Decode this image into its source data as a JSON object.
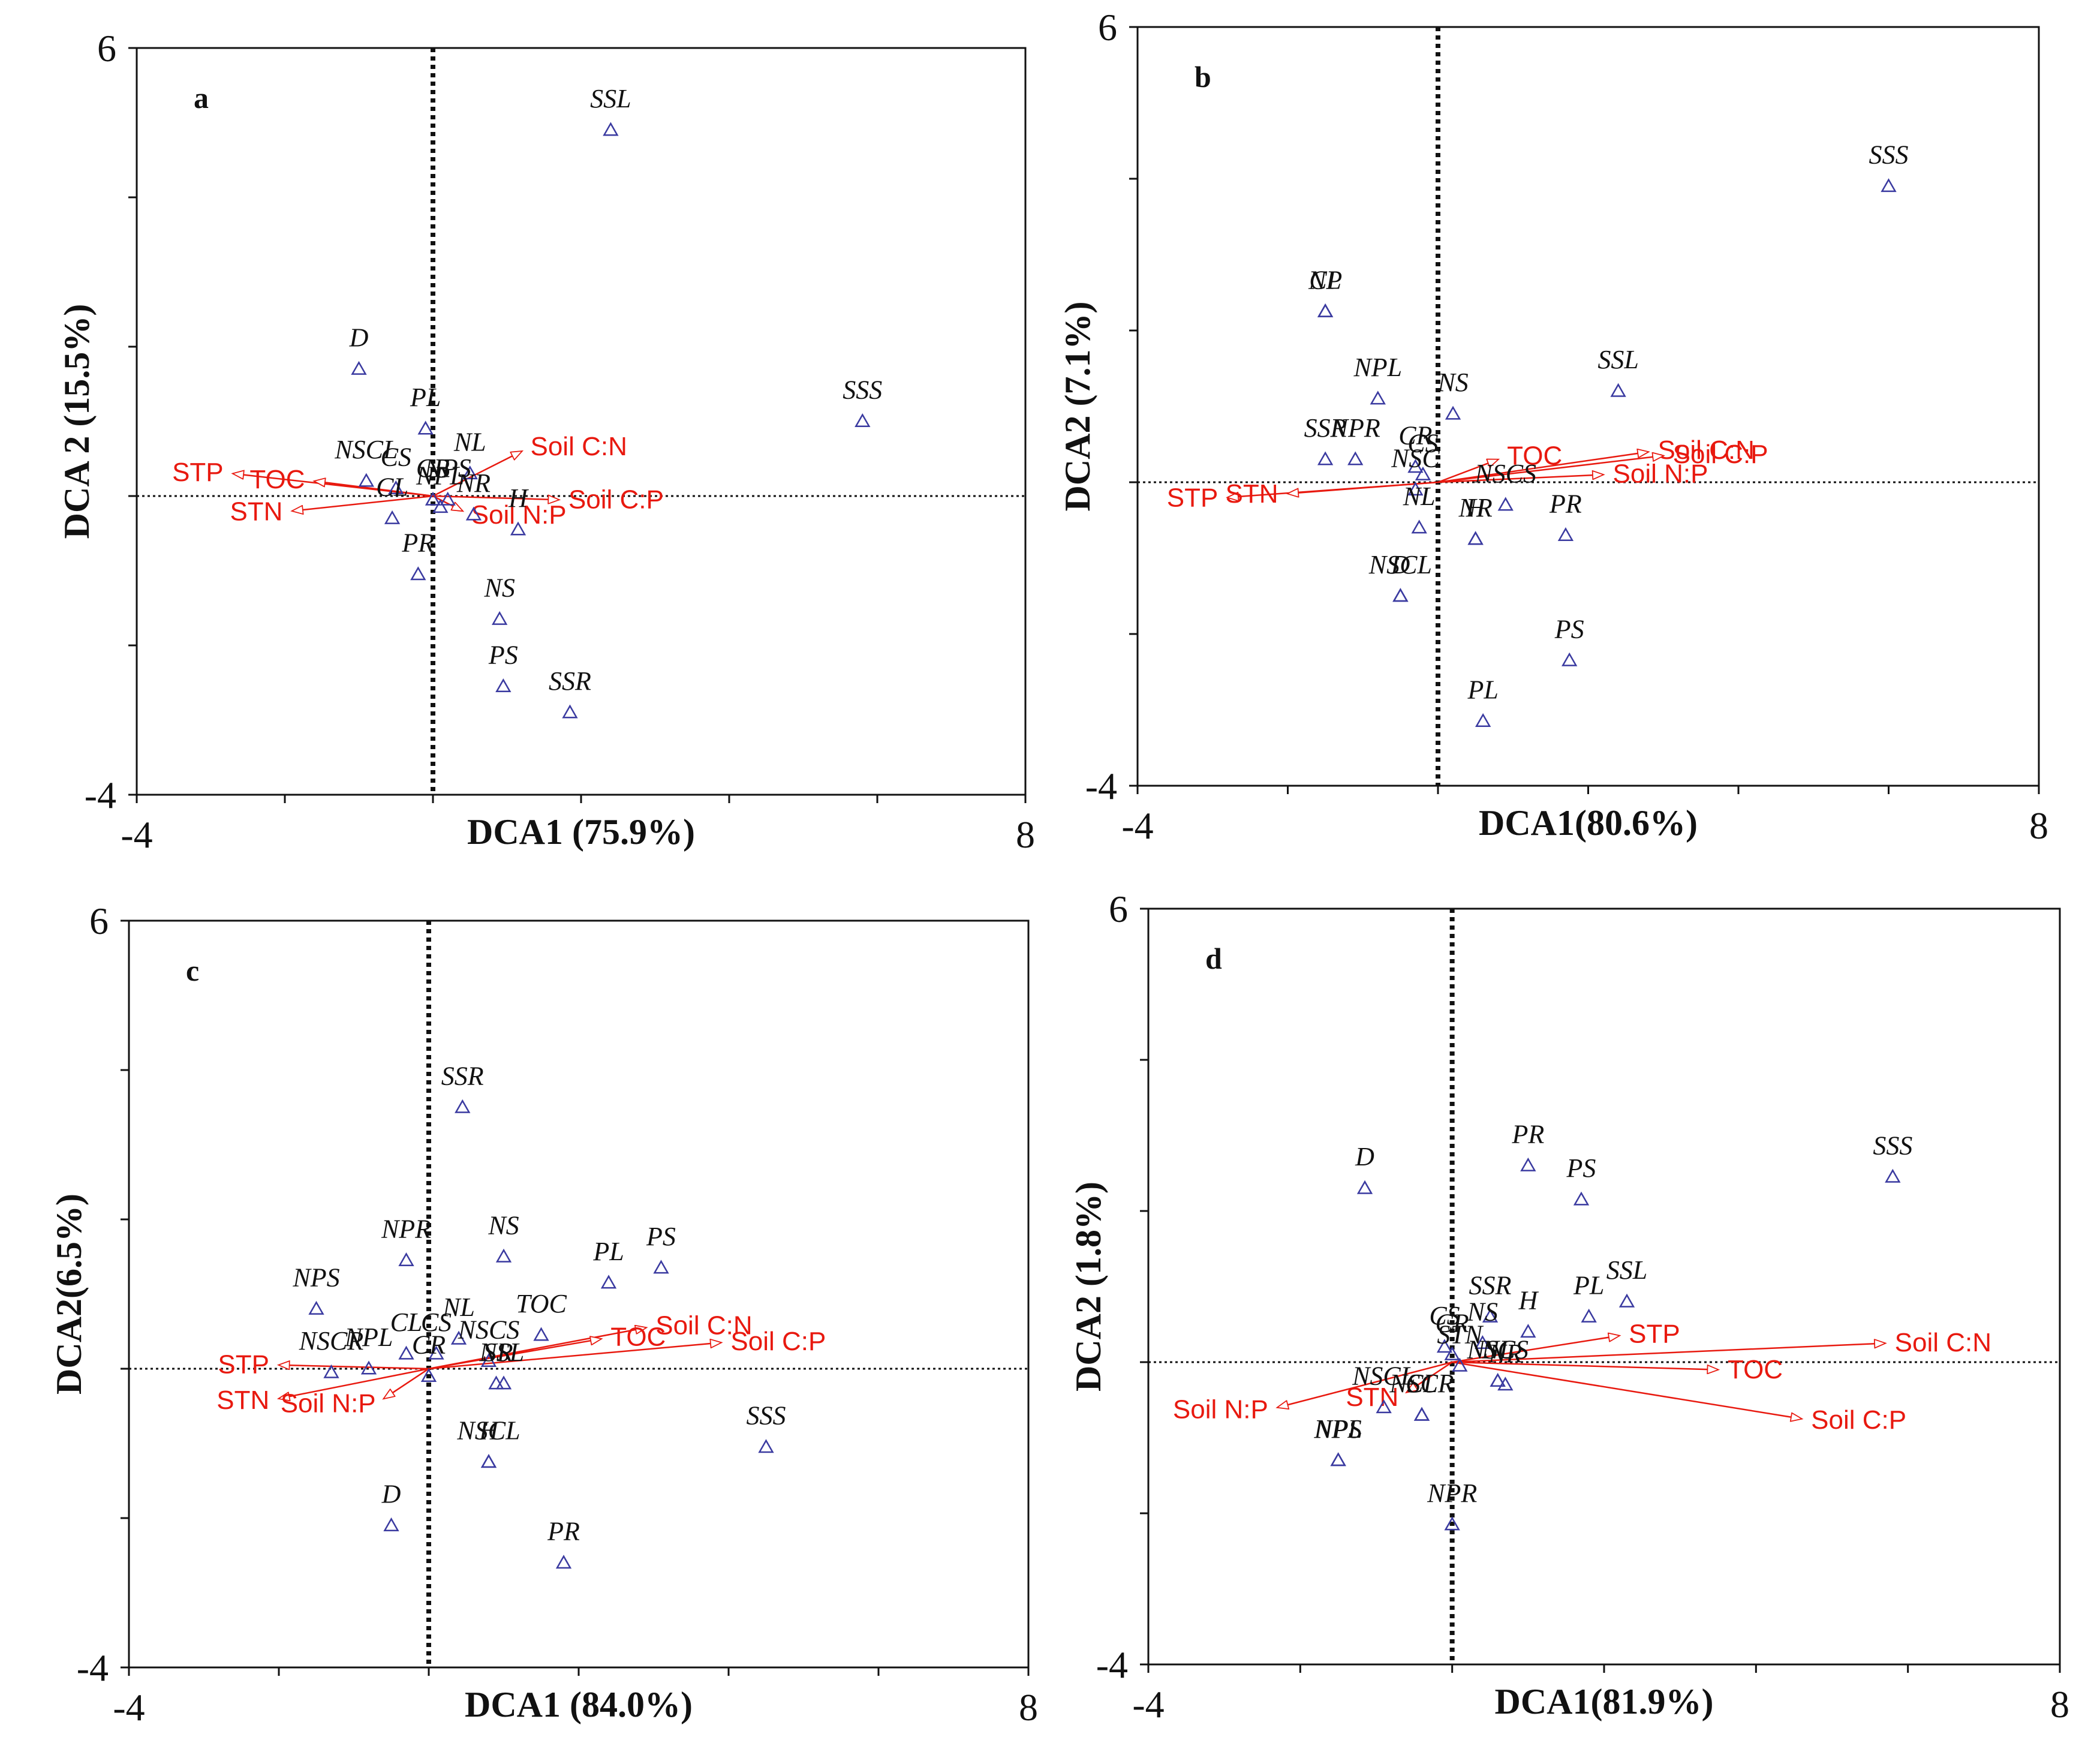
{
  "colors": {
    "arrow": "#e8190f",
    "point": "#3a3aa0",
    "axis": "#111111"
  },
  "chart_data": [
    {
      "type": "scatter",
      "panel_label": "a",
      "xlabel": "DCA1 (75.9%)",
      "ylabel": "DCA 2 (15.5%)",
      "xlim": [
        -4,
        8
      ],
      "ylim": [
        -4,
        6
      ],
      "x_tick_labels": [
        "-4",
        "8"
      ],
      "y_tick_labels": [
        "6",
        "-4"
      ],
      "zero_lines": {
        "x": 0,
        "y": 0
      },
      "sites": [
        {
          "label": "SSL",
          "x": 2.4,
          "y": 4.9
        },
        {
          "label": "SSS",
          "x": 5.8,
          "y": 1.0
        },
        {
          "label": "D",
          "x": -1.0,
          "y": 1.7
        },
        {
          "label": "PL",
          "x": -0.1,
          "y": 0.9
        },
        {
          "label": "NSCL",
          "x": -0.9,
          "y": 0.2
        },
        {
          "label": "CS",
          "x": -0.5,
          "y": 0.1
        },
        {
          "label": "NL",
          "x": 0.5,
          "y": 0.3
        },
        {
          "label": "CL",
          "x": -0.55,
          "y": -0.3
        },
        {
          "label": "NPL",
          "x": 0.1,
          "y": -0.15
        },
        {
          "label": "NR",
          "x": 0.55,
          "y": -0.25
        },
        {
          "label": "CR",
          "x": 0.0,
          "y": -0.05
        },
        {
          "label": "NPS",
          "x": 0.2,
          "y": -0.05
        },
        {
          "label": "H",
          "x": 1.15,
          "y": -0.45
        },
        {
          "label": "PR",
          "x": -0.2,
          "y": -1.05
        },
        {
          "label": "NS",
          "x": 0.9,
          "y": -1.65
        },
        {
          "label": "PS",
          "x": 0.95,
          "y": -2.55
        },
        {
          "label": "SSR",
          "x": 1.85,
          "y": -2.9
        }
      ],
      "vectors": [
        {
          "label": "STP",
          "x": -2.7,
          "y": 0.3
        },
        {
          "label": "STN",
          "x": -1.9,
          "y": -0.2
        },
        {
          "label": "TOC",
          "x": -1.6,
          "y": 0.2
        },
        {
          "label": "Soil C:N",
          "x": 1.2,
          "y": 0.6
        },
        {
          "label": "Soil C:P",
          "x": 1.7,
          "y": -0.05
        },
        {
          "label": "Soil N:P",
          "x": 0.4,
          "y": -0.2
        }
      ]
    },
    {
      "type": "scatter",
      "panel_label": "b",
      "xlabel": "DCA1(80.6%)",
      "ylabel": "DCA2 (7.1%)",
      "xlim": [
        -4,
        8
      ],
      "ylim": [
        -4,
        6
      ],
      "x_tick_labels": [
        "-4",
        "8"
      ],
      "y_tick_labels": [
        "6",
        "-4"
      ],
      "zero_lines": {
        "x": 0,
        "y": 0
      },
      "sites": [
        {
          "label": "SSS",
          "x": 6.0,
          "y": 3.9
        },
        {
          "label": "CL",
          "x": -1.5,
          "y": 2.25
        },
        {
          "label": "NP",
          "x": -1.5,
          "y": 2.25
        },
        {
          "label": "NPL",
          "x": -0.8,
          "y": 1.1
        },
        {
          "label": "NS",
          "x": 0.2,
          "y": 0.9
        },
        {
          "label": "SSL",
          "x": 2.4,
          "y": 1.2
        },
        {
          "label": "SSR",
          "x": -1.5,
          "y": 0.3
        },
        {
          "label": "NPR",
          "x": -1.1,
          "y": 0.3
        },
        {
          "label": "CR",
          "x": -0.3,
          "y": 0.2
        },
        {
          "label": "CS",
          "x": -0.2,
          "y": 0.1
        },
        {
          "label": "NSCS",
          "x": 0.9,
          "y": -0.3
        },
        {
          "label": "NSC",
          "x": -0.3,
          "y": -0.1
        },
        {
          "label": "NL",
          "x": -0.25,
          "y": -0.6
        },
        {
          "label": "NSCL",
          "x": -0.5,
          "y": -1.5
        },
        {
          "label": "NR",
          "x": 0.5,
          "y": -0.75
        },
        {
          "label": "H",
          "x": 0.5,
          "y": -0.75
        },
        {
          "label": "PR",
          "x": 1.7,
          "y": -0.7
        },
        {
          "label": "D",
          "x": -0.5,
          "y": -1.5
        },
        {
          "label": "PS",
          "x": 1.75,
          "y": -2.35
        },
        {
          "label": "PL",
          "x": 0.6,
          "y": -3.15
        }
      ],
      "vectors": [
        {
          "label": "STP",
          "x": -2.8,
          "y": -0.2
        },
        {
          "label": "STN",
          "x": -2.0,
          "y": -0.15
        },
        {
          "label": "TOC",
          "x": 0.8,
          "y": 0.3
        },
        {
          "label": "Soil C:N",
          "x": 2.8,
          "y": 0.4
        },
        {
          "label": "Soil C:P",
          "x": 3.0,
          "y": 0.35
        },
        {
          "label": "Soil N:P",
          "x": 2.2,
          "y": 0.1
        }
      ]
    },
    {
      "type": "scatter",
      "panel_label": "c",
      "xlabel": "DCA1 (84.0%)",
      "ylabel": "DCA2(6.5%)",
      "xlim": [
        -4,
        8
      ],
      "ylim": [
        -4,
        6
      ],
      "x_tick_labels": [
        "-4",
        "8"
      ],
      "y_tick_labels": [
        "6",
        "-4"
      ],
      "zero_lines": {
        "x": 0,
        "y": 0
      },
      "sites": [
        {
          "label": "SSR",
          "x": 0.45,
          "y": 3.5
        },
        {
          "label": "NS",
          "x": 1.0,
          "y": 1.5
        },
        {
          "label": "NPR",
          "x": -0.3,
          "y": 1.45
        },
        {
          "label": "PL",
          "x": 2.4,
          "y": 1.15
        },
        {
          "label": "PS",
          "x": 3.1,
          "y": 1.35
        },
        {
          "label": "NPS",
          "x": -1.5,
          "y": 0.8
        },
        {
          "label": "CL",
          "x": -0.3,
          "y": 0.2
        },
        {
          "label": "CS",
          "x": 0.1,
          "y": 0.2
        },
        {
          "label": "NL",
          "x": 0.4,
          "y": 0.4
        },
        {
          "label": "TOC",
          "x": 1.5,
          "y": 0.45
        },
        {
          "label": "NSCR",
          "x": -1.3,
          "y": -0.05
        },
        {
          "label": "NSCS",
          "x": 0.8,
          "y": 0.1
        },
        {
          "label": "CR",
          "x": 0.0,
          "y": -0.1
        },
        {
          "label": "SSL",
          "x": 1.0,
          "y": -0.2
        },
        {
          "label": "NPL",
          "x": -0.8,
          "y": 0.0
        },
        {
          "label": "NR",
          "x": 0.9,
          "y": -0.2
        },
        {
          "label": "NSCL",
          "x": 0.8,
          "y": -1.25
        },
        {
          "label": "H",
          "x": 0.8,
          "y": -1.25
        },
        {
          "label": "SSS",
          "x": 4.5,
          "y": -1.05
        },
        {
          "label": "D",
          "x": -0.5,
          "y": -2.1
        },
        {
          "label": "PR",
          "x": 1.8,
          "y": -2.6
        }
      ],
      "vectors": [
        {
          "label": "STP",
          "x": -2.0,
          "y": 0.05
        },
        {
          "label": "STN",
          "x": -2.0,
          "y": -0.4
        },
        {
          "label": "Soil N:P",
          "x": -0.6,
          "y": -0.4
        },
        {
          "label": "Soil C:N",
          "x": 2.9,
          "y": 0.55
        },
        {
          "label": "Soil C:P",
          "x": 3.9,
          "y": 0.35
        },
        {
          "label": "TOC",
          "x": 2.3,
          "y": 0.4
        }
      ]
    },
    {
      "type": "scatter",
      "panel_label": "d",
      "xlabel": "DCA1(81.9%)",
      "ylabel": "DCA2 (1.8%)",
      "xlim": [
        -4,
        8
      ],
      "ylim": [
        -4,
        6
      ],
      "x_tick_labels": [
        "-4",
        "8"
      ],
      "y_tick_labels": [
        "6",
        "-4"
      ],
      "zero_lines": {
        "x": 0,
        "y": 0
      },
      "sites": [
        {
          "label": "D",
          "x": -1.15,
          "y": 2.3
        },
        {
          "label": "PR",
          "x": 1.0,
          "y": 2.6
        },
        {
          "label": "PS",
          "x": 1.7,
          "y": 2.15
        },
        {
          "label": "SSS",
          "x": 5.8,
          "y": 2.45
        },
        {
          "label": "SSL",
          "x": 2.3,
          "y": 0.8
        },
        {
          "label": "SSR",
          "x": 0.5,
          "y": 0.6
        },
        {
          "label": "H",
          "x": 1.0,
          "y": 0.4
        },
        {
          "label": "PL",
          "x": 1.8,
          "y": 0.6
        },
        {
          "label": "CS",
          "x": -0.1,
          "y": 0.2
        },
        {
          "label": "NS",
          "x": 0.4,
          "y": 0.25
        },
        {
          "label": "CR",
          "x": 0.0,
          "y": 0.1
        },
        {
          "label": "NSCL",
          "x": -0.9,
          "y": -0.6
        },
        {
          "label": "STN",
          "x": 0.1,
          "y": -0.05
        },
        {
          "label": "NSCS",
          "x": 0.6,
          "y": -0.25
        },
        {
          "label": "CL",
          "x": -0.4,
          "y": -0.7
        },
        {
          "label": "NL",
          "x": 0.6,
          "y": -0.25
        },
        {
          "label": "NPL",
          "x": -1.5,
          "y": -1.3
        },
        {
          "label": "NSCR",
          "x": -0.4,
          "y": -0.7
        },
        {
          "label": "NR",
          "x": 0.7,
          "y": -0.3
        },
        {
          "label": "NPS",
          "x": -1.5,
          "y": -1.3
        },
        {
          "label": "NPR",
          "x": 0.0,
          "y": -2.15
        }
      ],
      "vectors": [
        {
          "label": "Soil N:P",
          "x": -2.3,
          "y": -0.6
        },
        {
          "label": "STN",
          "x": -0.6,
          "y": -0.4
        },
        {
          "label": "STP",
          "x": 2.2,
          "y": 0.35
        },
        {
          "label": "Soil C:N",
          "x": 5.7,
          "y": 0.25
        },
        {
          "label": "TOC",
          "x": 3.5,
          "y": -0.1
        },
        {
          "label": "Soil C:P",
          "x": 4.6,
          "y": -0.75
        }
      ]
    }
  ]
}
